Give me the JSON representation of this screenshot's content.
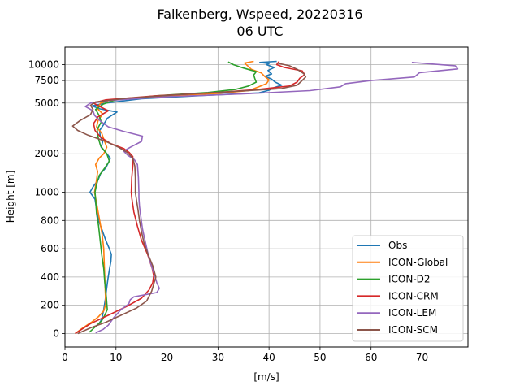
{
  "chart_data": {
    "type": "line",
    "title": "Falkenberg, Wspeed, 20220316",
    "subtitle": "06 UTC",
    "xlabel": "[m/s]",
    "ylabel": "Height [m]",
    "xlim": [
      0,
      79
    ],
    "x_ticks": [
      0,
      10,
      20,
      30,
      40,
      50,
      60,
      70
    ],
    "y_ticks": [
      {
        "label": "0",
        "height": 0
      },
      {
        "label": "200",
        "height": 200
      },
      {
        "label": "400",
        "height": 400
      },
      {
        "label": "600",
        "height": 600
      },
      {
        "label": "800",
        "height": 800
      },
      {
        "label": "1000",
        "height": 1000
      },
      {
        "label": "2000",
        "height": 2000
      },
      {
        "label": "5000",
        "height": 5000
      },
      {
        "label": "7500",
        "height": 7500
      },
      {
        "label": "10000",
        "height": 10000
      }
    ],
    "y_scale": "piecewise: linear 0-1000 m, logarithmic above 1000 m",
    "grid": true,
    "legend_position": "lower right",
    "series": [
      {
        "name": "Obs",
        "color": "#1f77b4",
        "points": [
          [
            6.5,
            60
          ],
          [
            7.2,
            100
          ],
          [
            7.6,
            170
          ],
          [
            7.9,
            240
          ],
          [
            8.1,
            300
          ],
          [
            8.4,
            380
          ],
          [
            8.7,
            450
          ],
          [
            9.0,
            510
          ],
          [
            9.1,
            560
          ],
          [
            8.7,
            600
          ],
          [
            8.0,
            660
          ],
          [
            7.2,
            740
          ],
          [
            6.6,
            800
          ],
          [
            6.2,
            880
          ],
          [
            5.9,
            950
          ],
          [
            4.9,
            1000
          ],
          [
            5.5,
            1100
          ],
          [
            6.5,
            1250
          ],
          [
            7.0,
            1400
          ],
          [
            8.0,
            1550
          ],
          [
            8.5,
            1700
          ],
          [
            8.9,
            1850
          ],
          [
            8.0,
            2050
          ],
          [
            7.1,
            2250
          ],
          [
            7.4,
            2500
          ],
          [
            6.9,
            2750
          ],
          [
            6.8,
            3050
          ],
          [
            7.5,
            3350
          ],
          [
            8.3,
            3800
          ],
          [
            10.2,
            4250
          ],
          [
            6.8,
            4500
          ],
          [
            5.3,
            4750
          ],
          [
            8.0,
            5000
          ],
          [
            15.0,
            5400
          ],
          [
            28.0,
            5750
          ],
          [
            38.0,
            6000
          ],
          [
            40.0,
            6300
          ],
          [
            41.0,
            6600
          ],
          [
            42.5,
            6900
          ],
          [
            41.2,
            7300
          ],
          [
            40.5,
            7700
          ],
          [
            39.2,
            8100
          ],
          [
            40.5,
            8450
          ],
          [
            39.8,
            9000
          ],
          [
            41.0,
            9500
          ],
          [
            39.5,
            10000
          ],
          [
            40.0,
            10200
          ],
          [
            38.2,
            10400
          ],
          [
            41.5,
            10600
          ]
        ]
      },
      {
        "name": "ICON-Global",
        "color": "#ff7f0e",
        "points": [
          [
            2.0,
            0
          ],
          [
            3.5,
            40
          ],
          [
            5.2,
            80
          ],
          [
            6.6,
            120
          ],
          [
            7.6,
            160
          ],
          [
            8.0,
            210
          ],
          [
            7.9,
            300
          ],
          [
            7.8,
            400
          ],
          [
            7.7,
            500
          ],
          [
            7.6,
            600
          ],
          [
            7.3,
            700
          ],
          [
            6.8,
            800
          ],
          [
            6.3,
            900
          ],
          [
            5.8,
            1000
          ],
          [
            6.2,
            1250
          ],
          [
            6.4,
            1450
          ],
          [
            6.0,
            1650
          ],
          [
            6.7,
            1850
          ],
          [
            7.6,
            2000
          ],
          [
            8.2,
            2250
          ],
          [
            7.7,
            2550
          ],
          [
            7.2,
            2900
          ],
          [
            6.2,
            3250
          ],
          [
            6.5,
            3650
          ],
          [
            7.4,
            4100
          ],
          [
            6.3,
            4550
          ],
          [
            7.0,
            5000
          ],
          [
            9.0,
            5300
          ],
          [
            18.0,
            5650
          ],
          [
            30.0,
            5950
          ],
          [
            36.0,
            6250
          ],
          [
            38.0,
            6700
          ],
          [
            39.5,
            7100
          ],
          [
            40.0,
            7600
          ],
          [
            39.2,
            8050
          ],
          [
            38.5,
            8600
          ],
          [
            36.5,
            9200
          ],
          [
            35.8,
            9800
          ],
          [
            35.2,
            10300
          ],
          [
            37.0,
            10600
          ]
        ]
      },
      {
        "name": "ICON-D2",
        "color": "#2ca02c",
        "points": [
          [
            4.8,
            10
          ],
          [
            6.0,
            50
          ],
          [
            7.2,
            90
          ],
          [
            7.8,
            130
          ],
          [
            8.3,
            170
          ],
          [
            8.1,
            260
          ],
          [
            7.8,
            360
          ],
          [
            7.6,
            460
          ],
          [
            7.2,
            560
          ],
          [
            6.9,
            660
          ],
          [
            6.6,
            760
          ],
          [
            6.2,
            850
          ],
          [
            6.0,
            950
          ],
          [
            5.9,
            1000
          ],
          [
            6.2,
            1150
          ],
          [
            6.7,
            1350
          ],
          [
            7.8,
            1550
          ],
          [
            8.7,
            1750
          ],
          [
            8.2,
            2000
          ],
          [
            7.0,
            2300
          ],
          [
            6.5,
            2700
          ],
          [
            6.3,
            3100
          ],
          [
            7.1,
            3550
          ],
          [
            6.7,
            4000
          ],
          [
            6.0,
            4450
          ],
          [
            7.5,
            4900
          ],
          [
            10.0,
            5300
          ],
          [
            18.0,
            5700
          ],
          [
            28.0,
            6050
          ],
          [
            33.5,
            6400
          ],
          [
            36.0,
            6800
          ],
          [
            37.5,
            7300
          ],
          [
            37.2,
            7800
          ],
          [
            37.0,
            8300
          ],
          [
            37.5,
            8800
          ],
          [
            35.0,
            9400
          ],
          [
            33.0,
            10000
          ],
          [
            32.0,
            10500
          ]
        ]
      },
      {
        "name": "ICON-CRM",
        "color": "#d62728",
        "points": [
          [
            2.0,
            0
          ],
          [
            5.0,
            70
          ],
          [
            8.5,
            130
          ],
          [
            12.0,
            190
          ],
          [
            15.0,
            250
          ],
          [
            16.5,
            310
          ],
          [
            17.2,
            360
          ],
          [
            17.4,
            410
          ],
          [
            17.1,
            460
          ],
          [
            16.2,
            560
          ],
          [
            15.0,
            660
          ],
          [
            14.2,
            760
          ],
          [
            13.5,
            860
          ],
          [
            13.1,
            960
          ],
          [
            13.0,
            1000
          ],
          [
            13.1,
            1300
          ],
          [
            13.3,
            1600
          ],
          [
            13.3,
            1900
          ],
          [
            12.6,
            2050
          ],
          [
            11.5,
            2200
          ],
          [
            9.0,
            2400
          ],
          [
            7.0,
            2700
          ],
          [
            5.9,
            3050
          ],
          [
            5.6,
            3450
          ],
          [
            6.5,
            3900
          ],
          [
            8.5,
            4350
          ],
          [
            6.8,
            4700
          ],
          [
            5.6,
            5000
          ],
          [
            8.0,
            5300
          ],
          [
            18.0,
            5700
          ],
          [
            30.0,
            6050
          ],
          [
            38.0,
            6400
          ],
          [
            44.0,
            6800
          ],
          [
            45.5,
            7300
          ],
          [
            46.0,
            7800
          ],
          [
            47.0,
            8350
          ],
          [
            46.5,
            8950
          ],
          [
            43.0,
            9500
          ],
          [
            41.5,
            10000
          ],
          [
            42.0,
            10600
          ]
        ]
      },
      {
        "name": "ICON-LEM",
        "color": "#9467bd",
        "points": [
          [
            6.0,
            5
          ],
          [
            7.5,
            30
          ],
          [
            8.5,
            60
          ],
          [
            9.5,
            110
          ],
          [
            11.0,
            170
          ],
          [
            12.5,
            210
          ],
          [
            12.8,
            240
          ],
          [
            13.5,
            260
          ],
          [
            18.0,
            290
          ],
          [
            18.5,
            320
          ],
          [
            18.0,
            360
          ],
          [
            17.5,
            420
          ],
          [
            16.5,
            530
          ],
          [
            15.8,
            640
          ],
          [
            15.2,
            740
          ],
          [
            14.9,
            820
          ],
          [
            14.6,
            900
          ],
          [
            14.5,
            960
          ],
          [
            14.5,
            1000
          ],
          [
            14.4,
            1300
          ],
          [
            14.2,
            1650
          ],
          [
            13.6,
            1800
          ],
          [
            12.3,
            1950
          ],
          [
            11.5,
            2100
          ],
          [
            12.8,
            2250
          ],
          [
            15.0,
            2500
          ],
          [
            15.2,
            2750
          ],
          [
            11.5,
            3000
          ],
          [
            8.5,
            3250
          ],
          [
            7.0,
            3600
          ],
          [
            5.8,
            4000
          ],
          [
            5.5,
            4350
          ],
          [
            4.0,
            4700
          ],
          [
            5.0,
            5000
          ],
          [
            9.0,
            5250
          ],
          [
            20.0,
            5600
          ],
          [
            35.0,
            5900
          ],
          [
            48.0,
            6250
          ],
          [
            54.0,
            6700
          ],
          [
            55.0,
            7100
          ],
          [
            60.0,
            7500
          ],
          [
            68.5,
            8000
          ],
          [
            69.5,
            8650
          ],
          [
            77.0,
            9250
          ],
          [
            76.5,
            9800
          ],
          [
            68.0,
            10400
          ]
        ]
      },
      {
        "name": "ICON-SCM",
        "color": "#8c564b",
        "points": [
          [
            2.5,
            0
          ],
          [
            5.0,
            40
          ],
          [
            8.0,
            80
          ],
          [
            11.0,
            130
          ],
          [
            14.0,
            180
          ],
          [
            16.0,
            230
          ],
          [
            17.0,
            300
          ],
          [
            17.8,
            400
          ],
          [
            17.2,
            480
          ],
          [
            16.3,
            560
          ],
          [
            15.5,
            640
          ],
          [
            15.0,
            720
          ],
          [
            14.6,
            800
          ],
          [
            14.3,
            880
          ],
          [
            14.0,
            950
          ],
          [
            13.8,
            1000
          ],
          [
            13.8,
            1300
          ],
          [
            13.7,
            1600
          ],
          [
            13.3,
            1850
          ],
          [
            12.2,
            2050
          ],
          [
            10.5,
            2250
          ],
          [
            8.0,
            2500
          ],
          [
            4.5,
            2800
          ],
          [
            2.5,
            3050
          ],
          [
            1.5,
            3300
          ],
          [
            3.0,
            3650
          ],
          [
            5.0,
            4050
          ],
          [
            5.5,
            4450
          ],
          [
            5.0,
            4800
          ],
          [
            6.0,
            5100
          ],
          [
            12.0,
            5450
          ],
          [
            22.0,
            5800
          ],
          [
            33.0,
            6150
          ],
          [
            42.5,
            6500
          ],
          [
            45.5,
            6900
          ],
          [
            46.5,
            7500
          ],
          [
            47.2,
            8000
          ],
          [
            46.8,
            8500
          ],
          [
            45.5,
            9200
          ],
          [
            44.0,
            9800
          ],
          [
            41.5,
            10300
          ]
        ]
      }
    ]
  }
}
